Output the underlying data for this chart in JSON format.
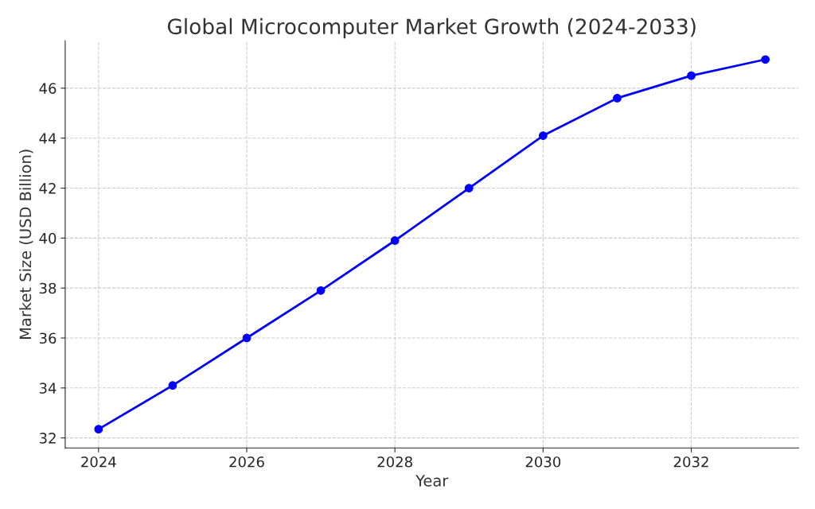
{
  "chart_data": {
    "type": "line",
    "title": "Global Microcomputer Market Growth (2024-2033)",
    "xlabel": "Year",
    "ylabel": "Market Size (USD Billion)",
    "x": [
      2024,
      2025,
      2026,
      2027,
      2028,
      2029,
      2030,
      2031,
      2032,
      2033
    ],
    "series": [
      {
        "color": "#0000ff",
        "values": [
          32.35,
          34.1,
          36.0,
          37.9,
          39.9,
          42.0,
          44.1,
          45.6,
          46.5,
          47.15
        ]
      }
    ],
    "xlim": [
      2023.55,
      2033.45
    ],
    "ylim": [
      31.6,
      47.9
    ],
    "xticks": [
      2024,
      2026,
      2028,
      2030,
      2032
    ],
    "yticks": [
      32,
      34,
      36,
      38,
      40,
      42,
      44,
      46
    ],
    "grid": true,
    "marker": "circle",
    "line_style": "solid"
  }
}
